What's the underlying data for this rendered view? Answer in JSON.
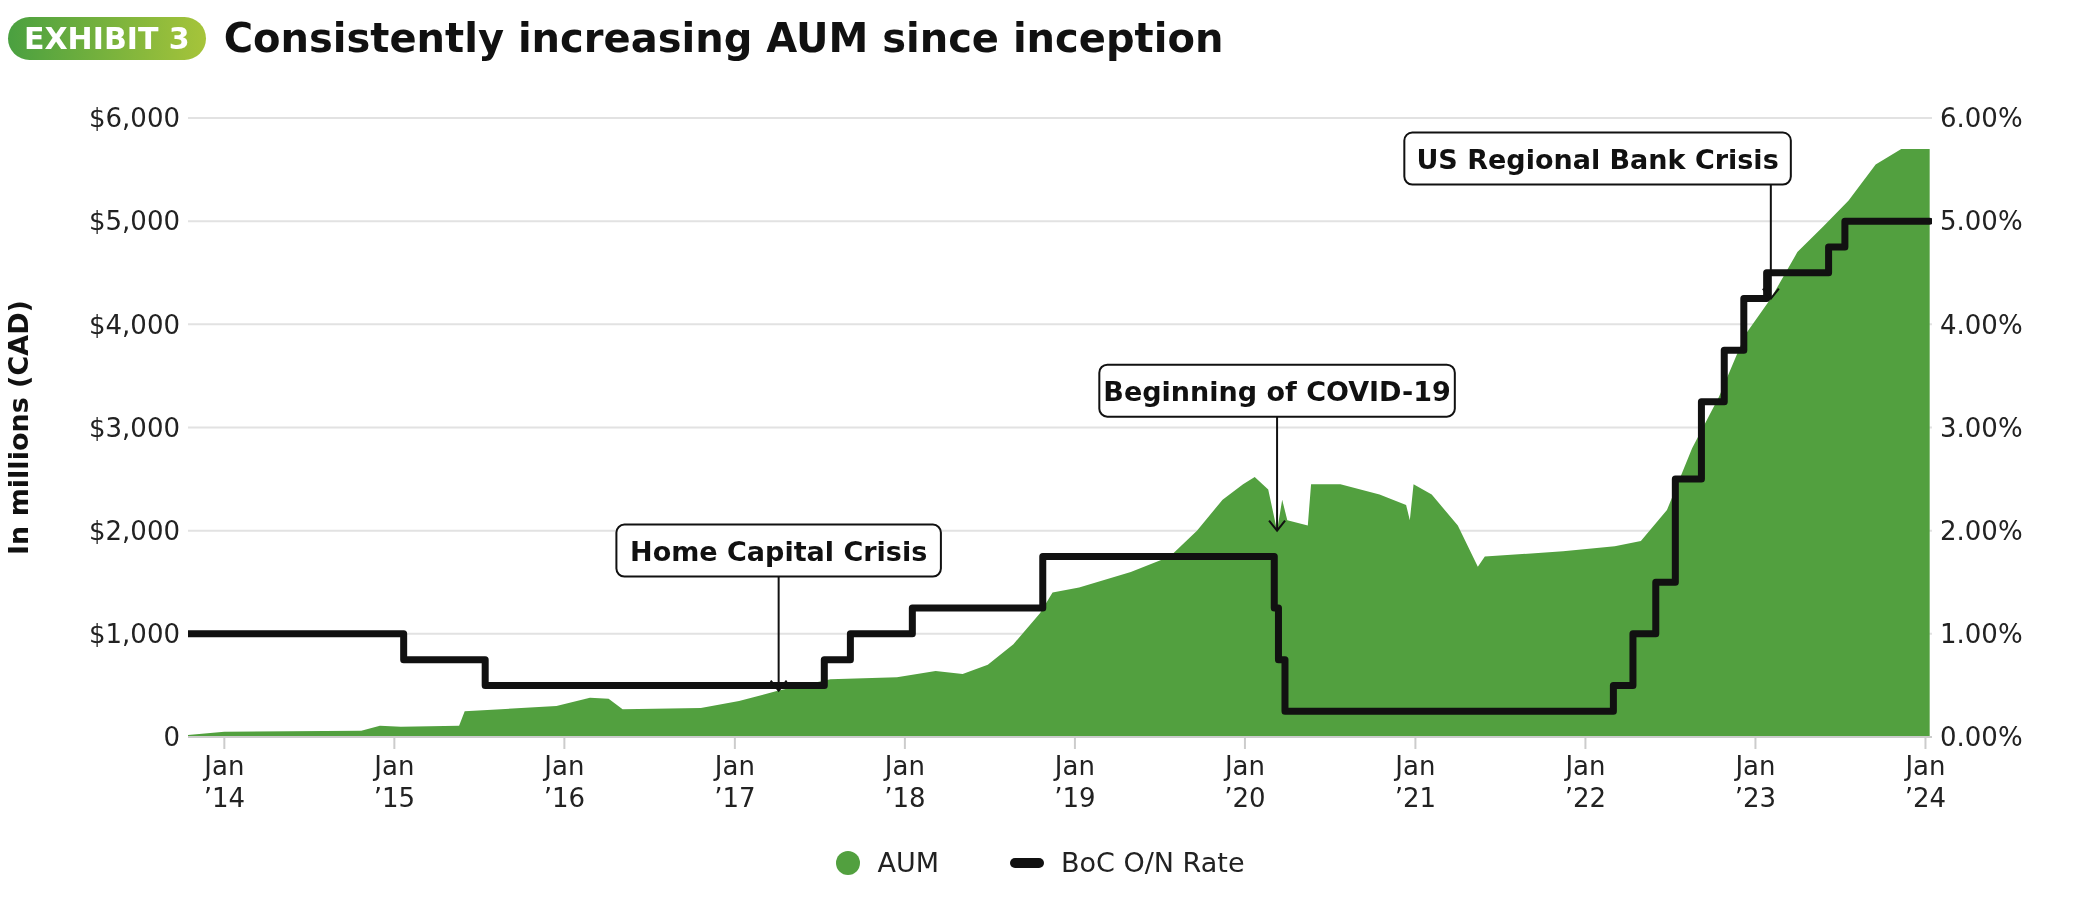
{
  "chart_data": {
    "type": "area",
    "title": "Consistently increasing AUM since inception",
    "ylabel": "In millions (CAD)",
    "annotations": [
      "EXHIBIT 3",
      {
        "text": "Home Capital Crisis",
        "x": "2017-04-05",
        "y": 450
      },
      {
        "text": "Beginning of COVID-19",
        "x": "2020-03-10",
        "y": 2000
      },
      {
        "text": "US Regional Bank Crisis",
        "x": "2023-02-03",
        "y": 4250
      }
    ],
    "xlim": [
      "2013-10-15",
      "2024-01-15"
    ],
    "xticks": [
      {
        "value": "2014-01-01",
        "label": "Jan ’14"
      },
      {
        "value": "2015-01-01",
        "label": "Jan ’15"
      },
      {
        "value": "2016-01-01",
        "label": "Jan ’16"
      },
      {
        "value": "2017-01-01",
        "label": "Jan ’17"
      },
      {
        "value": "2018-01-01",
        "label": "Jan ’18"
      },
      {
        "value": "2019-01-01",
        "label": "Jan ’19"
      },
      {
        "value": "2020-01-01",
        "label": "Jan ’20"
      },
      {
        "value": "2021-01-01",
        "label": "Jan ’21"
      },
      {
        "value": "2022-01-01",
        "label": "Jan ’22"
      },
      {
        "value": "2023-01-01",
        "label": "Jan ’23"
      },
      {
        "value": "2024-01-01",
        "label": "Jan ’24"
      }
    ],
    "ylim": [
      0,
      6000
    ],
    "yticks": [
      {
        "value": 0,
        "label": "0"
      },
      {
        "value": 1000,
        "label": "$1,000"
      },
      {
        "value": 2000,
        "label": "$2,000"
      },
      {
        "value": 3000,
        "label": "$3,000"
      },
      {
        "value": 4000,
        "label": "$4,000"
      },
      {
        "value": 5000,
        "label": "$5,000"
      },
      {
        "value": 6000,
        "label": "$6,000"
      }
    ],
    "y2lim": [
      0,
      6
    ],
    "y2ticks": [
      {
        "value": 0,
        "label": "0.00%"
      },
      {
        "value": 1,
        "label": "1.00%"
      },
      {
        "value": 2,
        "label": "2.00%"
      },
      {
        "value": 3,
        "label": "3.00%"
      },
      {
        "value": 4,
        "label": "4.00%"
      },
      {
        "value": 5,
        "label": "5.00%"
      },
      {
        "value": 6,
        "label": "6.00%"
      }
    ],
    "grid": "y",
    "legend": "bottom",
    "series": [
      {
        "name": "AUM",
        "color": "#52a03f",
        "x": [
          "2013-10-15",
          "2014-01-01",
          "2014-10-22",
          "2014-12-01",
          "2015-01-15",
          "2015-05-20",
          "2015-06-01",
          "2015-12-15",
          "2016-02-25",
          "2016-04-05",
          "2016-05-05",
          "2016-10-20",
          "2017-01-10",
          "2017-04-05",
          "2017-07-25",
          "2017-12-15",
          "2018-03-08",
          "2018-05-05",
          "2018-06-28",
          "2018-08-22",
          "2018-10-18",
          "2018-11-14",
          "2019-01-10",
          "2019-05-01",
          "2019-07-24",
          "2019-09-20",
          "2019-11-14",
          "2019-12-28",
          "2020-01-22",
          "2020-02-20",
          "2020-03-10",
          "2020-03-21",
          "2020-04-01",
          "2020-05-15",
          "2020-05-22",
          "2020-07-24",
          "2020-10-16",
          "2020-12-12",
          "2020-12-20",
          "2020-12-28",
          "2021-02-05",
          "2021-04-02",
          "2021-05-15",
          "2021-05-30",
          "2021-11-14",
          "2022-03-05",
          "2022-04-30",
          "2022-06-25",
          "2022-08-18",
          "2022-10-15",
          "2022-12-10",
          "2023-02-03",
          "2023-04-01",
          "2023-05-27",
          "2023-07-20",
          "2023-09-16",
          "2023-11-10",
          "2024-01-01",
          "2024-01-10"
        ],
        "values": [
          20,
          50,
          60,
          110,
          100,
          110,
          250,
          300,
          380,
          370,
          270,
          280,
          350,
          450,
          560,
          580,
          640,
          610,
          700,
          900,
          1200,
          1400,
          1450,
          1600,
          1750,
          2000,
          2300,
          2450,
          2520,
          2400,
          2000,
          2300,
          2100,
          2050,
          2450,
          2450,
          2350,
          2250,
          2100,
          2450,
          2350,
          2050,
          1650,
          1750,
          1800,
          1850,
          1900,
          2200,
          2800,
          3300,
          3900,
          4250,
          4700,
          4950,
          5200,
          5550,
          5700,
          5700,
          5700
        ]
      },
      {
        "name": "BoC O/N Rate",
        "type": "step",
        "axis": "y2",
        "color": "#111111",
        "x": [
          "2013-10-15",
          "2015-01-21",
          "2015-07-15",
          "2017-07-12",
          "2017-09-06",
          "2018-01-17",
          "2018-10-24",
          "2020-03-04",
          "2020-03-13",
          "2020-03-27",
          "2022-03-02",
          "2022-04-13",
          "2022-06-01",
          "2022-07-13",
          "2022-09-07",
          "2022-10-26",
          "2022-12-07",
          "2023-01-25",
          "2023-06-07",
          "2023-07-12",
          "2024-01-10"
        ],
        "values": [
          1,
          0.75,
          0.5,
          0.75,
          1,
          1.25,
          1.75,
          1.25,
          0.75,
          0.25,
          0.5,
          1,
          1.5,
          2.5,
          3.25,
          3.75,
          4.25,
          4.5,
          4.75,
          5,
          5
        ]
      }
    ]
  }
}
